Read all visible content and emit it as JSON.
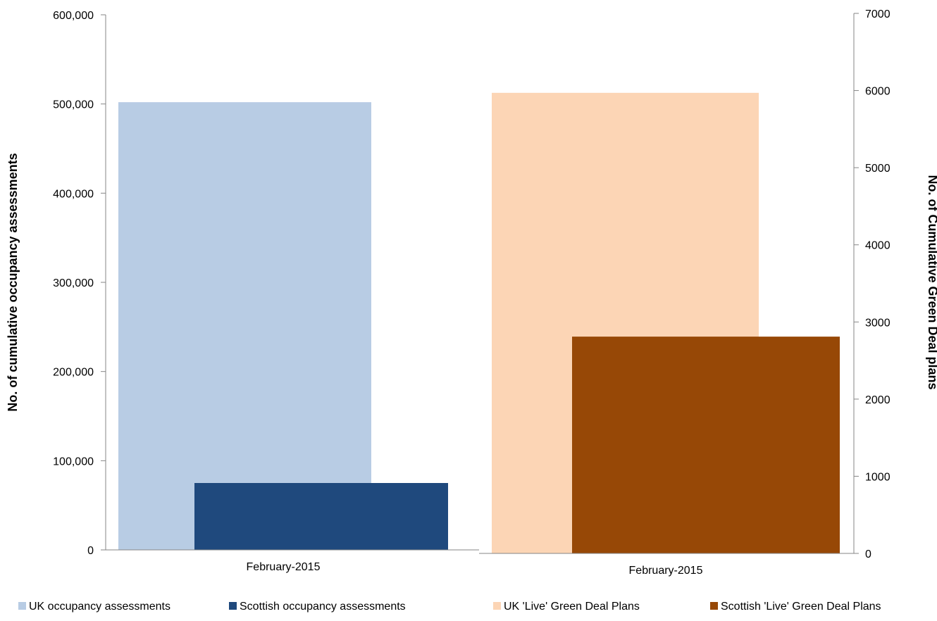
{
  "chart_data": [
    {
      "type": "bar",
      "categories": [
        "February-2015"
      ],
      "series": [
        {
          "name": "UK occupancy assessments",
          "values": [
            502000
          ],
          "color": "#b8cce4"
        },
        {
          "name": "Scottish occupancy assessments",
          "values": [
            75000
          ],
          "color": "#1f497d"
        }
      ],
      "ylabel": "No. of cumulative occupancy assessments",
      "ylim": [
        0,
        600000
      ],
      "yticks": [
        "0",
        "100,000",
        "200,000",
        "300,000",
        "400,000",
        "500,000",
        "600,000"
      ],
      "grid": false,
      "legend": "bottom"
    },
    {
      "type": "bar",
      "categories": [
        "February-2015"
      ],
      "series": [
        {
          "name": "UK 'Live' Green Deal Plans",
          "values": [
            5970
          ],
          "color": "#fcd5b5"
        },
        {
          "name": "Scottish 'Live' Green Deal Plans",
          "values": [
            2810
          ],
          "color": "#974806"
        }
      ],
      "ylabel": "No. of Cumulative Green Deal plans",
      "ylim": [
        0,
        7000
      ],
      "yticks": [
        "0",
        "1000",
        "2000",
        "3000",
        "4000",
        "5000",
        "6000",
        "7000"
      ],
      "grid": false,
      "legend": "bottom"
    }
  ]
}
